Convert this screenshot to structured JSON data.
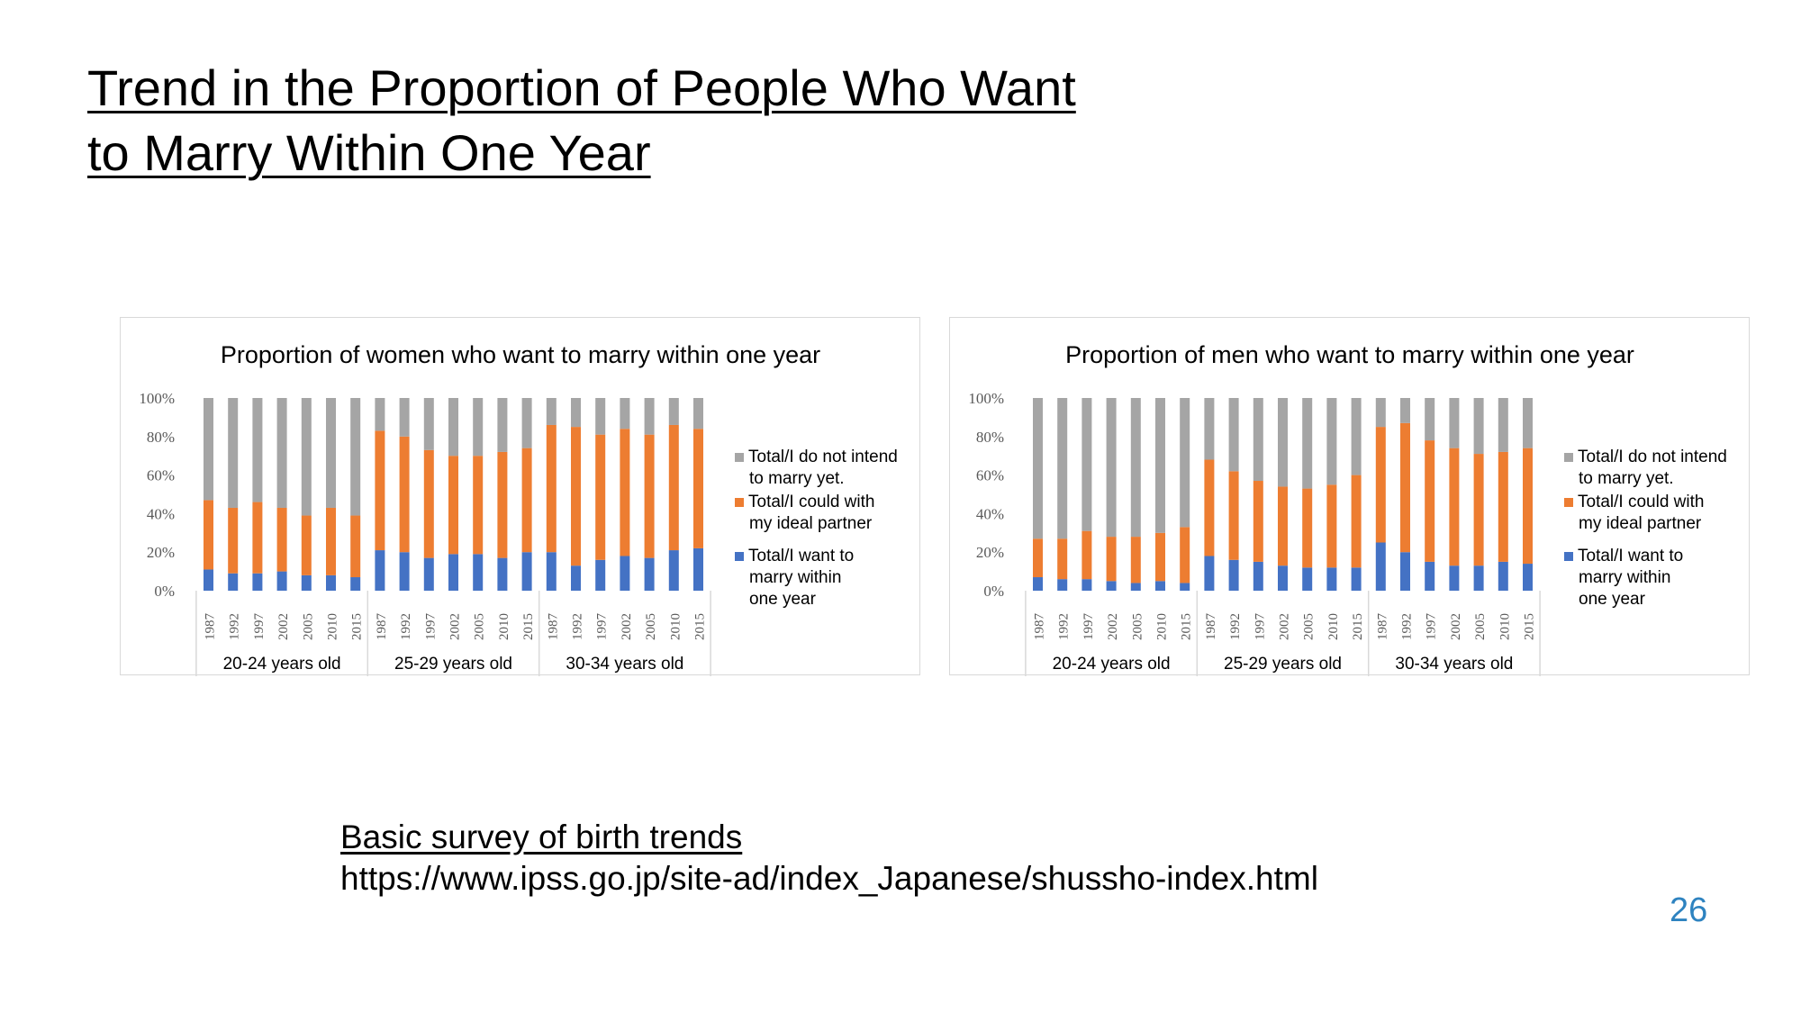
{
  "slide": {
    "title_line1": "Trend in the Proportion of People Who Want",
    "title_line2": "to Marry Within One Year",
    "source_title": "Basic survey of birth trends",
    "source_url": "https://www.ipss.go.jp/site-ad/index_Japanese/shussho-index.html",
    "page_number": "26"
  },
  "colors": {
    "want": "#4472c4",
    "ideal": "#ed7d31",
    "not_intend": "#a5a5a5"
  },
  "chart_data": [
    {
      "type": "bar",
      "stacked": true,
      "percent": true,
      "title": "Proportion of women who want to marry within one year",
      "y_ticks": [
        "100%",
        "80%",
        "60%",
        "40%",
        "20%",
        "0%"
      ],
      "ylim": [
        0,
        100
      ],
      "groups": [
        "20-24 years old",
        "25-29 years old",
        "30-34 years old"
      ],
      "years": [
        "1987",
        "1992",
        "1997",
        "2002",
        "2005",
        "2010",
        "2015"
      ],
      "legend": [
        [
          "Total/I do not intend",
          "to marry yet."
        ],
        [
          "Total/I could with",
          "my ideal partner"
        ],
        [
          "Total/I want to",
          "marry within",
          "one year"
        ]
      ],
      "series": [
        {
          "name": "Total/I want to marry within one year",
          "values": [
            11,
            9,
            9,
            10,
            8,
            8,
            7,
            21,
            20,
            17,
            19,
            19,
            17,
            20,
            20,
            13,
            16,
            18,
            17,
            21,
            22
          ]
        },
        {
          "name": "Total/I could with my ideal partner",
          "values": [
            36,
            34,
            37,
            33,
            31,
            35,
            32,
            62,
            60,
            56,
            51,
            51,
            55,
            54,
            66,
            72,
            65,
            66,
            64,
            65,
            62
          ]
        },
        {
          "name": "Total/I do not intend to marry yet.",
          "values": [
            53,
            57,
            54,
            57,
            61,
            57,
            61,
            17,
            20,
            27,
            30,
            30,
            28,
            26,
            14,
            15,
            19,
            16,
            19,
            14,
            16
          ]
        }
      ]
    },
    {
      "type": "bar",
      "stacked": true,
      "percent": true,
      "title": "Proportion of men who want to marry within one year",
      "y_ticks": [
        "100%",
        "80%",
        "60%",
        "40%",
        "20%",
        "0%"
      ],
      "ylim": [
        0,
        100
      ],
      "groups": [
        "20-24 years old",
        "25-29 years old",
        "30-34 years old"
      ],
      "years": [
        "1987",
        "1992",
        "1997",
        "2002",
        "2005",
        "2010",
        "2015"
      ],
      "legend": [
        [
          "Total/I do not intend",
          "to marry yet."
        ],
        [
          "Total/I could with",
          "my ideal partner"
        ],
        [
          "Total/I want to",
          "marry within",
          "one year"
        ]
      ],
      "series": [
        {
          "name": "Total/I want to marry within one year",
          "values": [
            7,
            6,
            6,
            5,
            4,
            5,
            4,
            18,
            16,
            15,
            13,
            12,
            12,
            12,
            25,
            20,
            15,
            13,
            13,
            15,
            14
          ]
        },
        {
          "name": "Total/I could with my ideal partner",
          "values": [
            20,
            21,
            25,
            23,
            24,
            25,
            29,
            50,
            46,
            42,
            41,
            41,
            43,
            48,
            60,
            67,
            63,
            61,
            58,
            57,
            60
          ]
        },
        {
          "name": "Total/I do not intend to marry yet.",
          "values": [
            73,
            73,
            69,
            72,
            72,
            70,
            67,
            32,
            38,
            43,
            46,
            47,
            45,
            40,
            15,
            13,
            22,
            26,
            29,
            28,
            26
          ]
        }
      ]
    }
  ]
}
